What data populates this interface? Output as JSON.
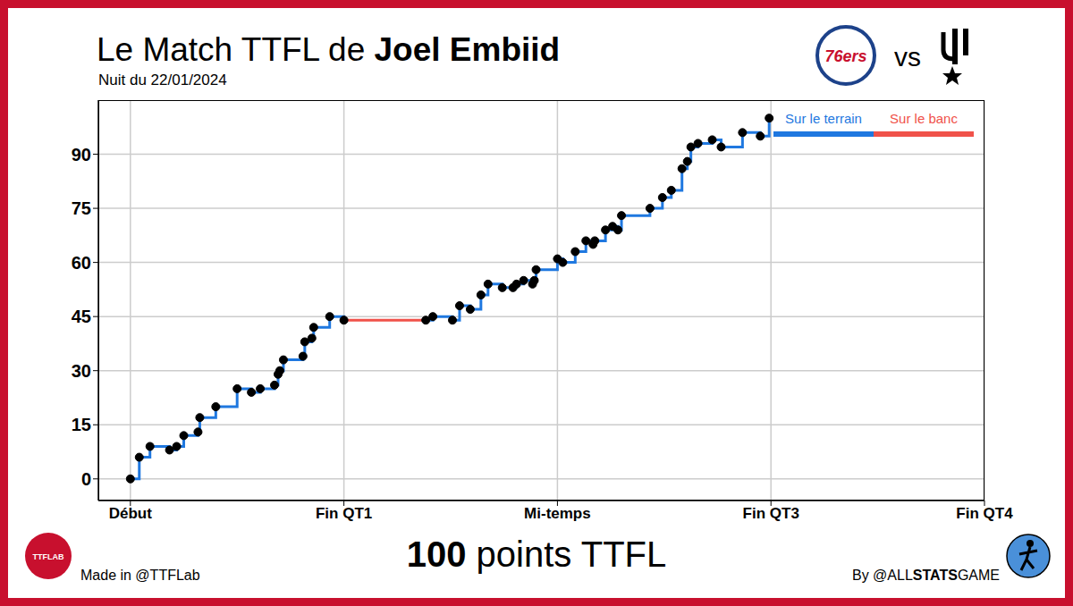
{
  "title": "Le Match TTFL de Joel Embiid",
  "title_highlight": "Joel Embiid",
  "subtitle": "Nuit du 22/01/2024",
  "teams": {
    "home": "76ers",
    "separator": "vs"
  },
  "footer": "100 points TTFL",
  "footer_highlight": "100",
  "credit_left": "Made in @TTFLab",
  "credit_right": "By @ALLSTATSGAME",
  "credit_right_highlight": "STATS",
  "logo_text": "TTFLAB",
  "chart_data": {
    "type": "line",
    "line_style": "step",
    "grid": true,
    "legend": "upper right",
    "x": [
      0,
      0.5,
      1.1,
      2.2,
      2.6,
      3.0,
      3.8,
      3.9,
      4.8,
      6.0,
      6.8,
      7.3,
      8.1,
      8.3,
      8.4,
      8.6,
      9.7,
      9.8,
      10.2,
      10.3,
      11.2,
      12.0,
      16.3,
      16.6,
      17.0,
      18.1,
      18.5,
      19.1,
      19.7,
      20.1,
      20.9,
      21.5,
      21.7,
      22.1,
      22.6,
      22.7,
      22.8,
      24.0,
      24.3,
      25.0,
      25.6,
      26.0,
      26.1,
      26.7,
      27.1,
      27.4,
      27.6,
      29.2,
      29.9,
      30.4,
      31.0,
      31.3,
      31.5,
      31.9,
      32.7,
      33.2,
      34.4,
      35.4,
      35.9
    ],
    "xlim": [
      -1.8,
      48
    ],
    "xticks": [
      {
        "value": 0,
        "label": "Début"
      },
      {
        "value": 12,
        "label": "Fin QT1"
      },
      {
        "value": 24,
        "label": "Mi-temps"
      },
      {
        "value": 36,
        "label": "Fin QT3"
      },
      {
        "value": 48,
        "label": "Fin QT4"
      }
    ],
    "ylim": [
      -6,
      105
    ],
    "yticks": [
      0,
      15,
      30,
      45,
      60,
      75,
      90
    ],
    "series": [
      {
        "name": "Sur le terrain",
        "color": "#1f78e0",
        "marker": "circle",
        "values": [
          0,
          6,
          9,
          8,
          9,
          12,
          13,
          17,
          20,
          25,
          24,
          25,
          26,
          29,
          30,
          33,
          34,
          38,
          39,
          42,
          45,
          44,
          null,
          44,
          45,
          44,
          48,
          47,
          51,
          54,
          53,
          53,
          54,
          55,
          54,
          55,
          58,
          61,
          60,
          63,
          66,
          65,
          66,
          69,
          70,
          69,
          73,
          75,
          78,
          80,
          86,
          88,
          92,
          93,
          94,
          92,
          96,
          95,
          100
        ]
      },
      {
        "name": "Sur le banc",
        "color": "#f0524a",
        "marker": "none",
        "values": [
          null,
          null,
          null,
          null,
          null,
          null,
          null,
          null,
          null,
          null,
          null,
          null,
          null,
          null,
          null,
          null,
          null,
          null,
          null,
          null,
          null,
          44,
          44,
          44,
          null,
          null,
          null,
          null,
          null,
          null,
          null,
          null,
          null,
          null,
          null,
          null,
          null,
          null,
          null,
          null,
          null,
          null,
          null,
          null,
          null,
          null,
          null,
          null,
          null,
          null,
          null,
          null,
          null,
          null,
          null,
          null,
          null,
          null,
          null
        ]
      }
    ]
  }
}
